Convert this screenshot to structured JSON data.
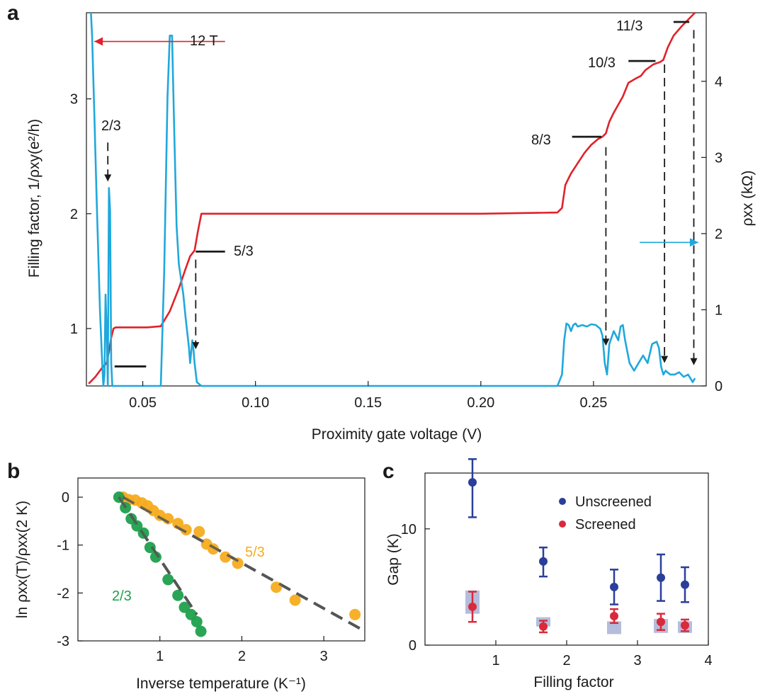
{
  "colors": {
    "red": "#e0222a",
    "cyan": "#1fa8dc",
    "black": "#1a1a1a",
    "orange": "#f5ac1e",
    "green": "#1fa04d",
    "blue": "#2a3f9a",
    "screened_red": "#d92a3b",
    "box_fill": "#a8b2d6",
    "dash_grey": "#555555"
  },
  "panels": {
    "a": "a",
    "b": "b",
    "c": "c"
  },
  "chart_data": [
    {
      "panel": "a",
      "type": "line",
      "xlabel": "Proximity gate voltage (V)",
      "ylabel_left": "Filling factor, 1/ρxy(e²/h)",
      "ylabel_right": "ρxx (kΩ)",
      "xlim": [
        0.025,
        0.3
      ],
      "ylim_left": [
        0.5,
        3.75
      ],
      "ylim_right": [
        0,
        4.9
      ],
      "x_ticks": [
        0.05,
        0.1,
        0.15,
        0.2,
        0.25
      ],
      "x_tick_labels": [
        "0.05",
        "0.10",
        "0.15",
        "0.20",
        "0.25"
      ],
      "y_left_ticks": [
        1,
        2,
        3
      ],
      "y_left_tick_labels": [
        "1",
        "2",
        "3"
      ],
      "y_right_ticks": [
        0,
        1,
        2,
        3,
        4
      ],
      "y_right_tick_labels": [
        "0",
        "1",
        "2",
        "3",
        "4"
      ],
      "annotations": {
        "field": "12 T",
        "f_2_3": "2/3",
        "f_5_3": "5/3",
        "f_8_3": "8/3",
        "f_10_3": "10/3",
        "f_11_3": "11/3"
      },
      "plateau_marks": [
        {
          "x": [
            0.0375,
            0.0515
          ],
          "y": 0.67
        },
        {
          "x": [
            0.0735,
            0.0865
          ],
          "y": 1.67
        },
        {
          "x": [
            0.2405,
            0.2535
          ],
          "y": 2.67
        },
        {
          "x": [
            0.2655,
            0.2775
          ],
          "y": 3.33
        },
        {
          "x": [
            0.2855,
            0.2925
          ],
          "y": 3.67
        }
      ],
      "series": [
        {
          "axis": "left",
          "color": "red",
          "x": [
            0.026,
            0.029,
            0.032,
            0.034,
            0.035,
            0.036,
            0.037,
            0.038,
            0.045,
            0.052,
            0.058,
            0.062,
            0.066,
            0.069,
            0.071,
            0.073,
            0.0745,
            0.076,
            0.09,
            0.15,
            0.2,
            0.234,
            0.236,
            0.2375,
            0.24,
            0.243,
            0.246,
            0.249,
            0.252,
            0.254,
            0.2555,
            0.257,
            0.259,
            0.261,
            0.263,
            0.2655,
            0.269,
            0.271,
            0.273,
            0.2765,
            0.2795,
            0.281,
            0.283,
            0.2855,
            0.289,
            0.2925,
            0.295
          ],
          "y": [
            0.52,
            0.58,
            0.66,
            0.7,
            0.8,
            0.92,
            1.0,
            1.01,
            1.01,
            1.01,
            1.02,
            1.15,
            1.35,
            1.52,
            1.63,
            1.68,
            1.85,
            2.0,
            2.0,
            2.0,
            2.0,
            2.01,
            2.05,
            2.25,
            2.35,
            2.44,
            2.53,
            2.6,
            2.65,
            2.67,
            2.7,
            2.8,
            2.88,
            2.95,
            3.02,
            3.14,
            3.18,
            3.2,
            3.25,
            3.3,
            3.32,
            3.34,
            3.45,
            3.55,
            3.63,
            3.7,
            3.75
          ]
        },
        {
          "axis": "right",
          "color": "cyan",
          "x": [
            0.027,
            0.0275,
            0.0285,
            0.0295,
            0.031,
            0.032,
            0.0325,
            0.033,
            0.0335,
            0.034,
            0.0345,
            0.035,
            0.0355,
            0.036,
            0.0365,
            0.037,
            0.04,
            0.05,
            0.058,
            0.0595,
            0.061,
            0.062,
            0.063,
            0.064,
            0.065,
            0.066,
            0.068,
            0.069,
            0.0705,
            0.071,
            0.072,
            0.0725,
            0.073,
            0.074,
            0.076,
            0.08,
            0.15,
            0.2,
            0.234,
            0.236,
            0.237,
            0.238,
            0.239,
            0.24,
            0.241,
            0.242,
            0.243,
            0.245,
            0.247,
            0.249,
            0.251,
            0.253,
            0.254,
            0.255,
            0.256,
            0.257,
            0.259,
            0.261,
            0.262,
            0.263,
            0.264,
            0.266,
            0.268,
            0.27,
            0.272,
            0.274,
            0.276,
            0.278,
            0.279,
            0.28,
            0.281,
            0.282,
            0.284,
            0.286,
            0.288,
            0.29,
            0.292,
            0.293,
            0.294,
            0.295
          ],
          "y": [
            4.9,
            4.6,
            3.6,
            2.5,
            1.0,
            0.3,
            0.0,
            0.15,
            1.2,
            0.7,
            0.0,
            2.6,
            2.3,
            0.3,
            0.0,
            0.0,
            0.0,
            0.0,
            0.0,
            1.5,
            3.8,
            4.6,
            4.6,
            3.3,
            2.1,
            1.6,
            1.2,
            0.9,
            0.5,
            0.3,
            0.6,
            0.48,
            0.3,
            0.05,
            0.0,
            0.0,
            0.0,
            0.0,
            0.0,
            0.15,
            0.6,
            0.82,
            0.8,
            0.72,
            0.8,
            0.82,
            0.78,
            0.8,
            0.78,
            0.81,
            0.8,
            0.75,
            0.66,
            0.3,
            0.15,
            0.55,
            0.72,
            0.6,
            0.78,
            0.8,
            0.6,
            0.3,
            0.2,
            0.3,
            0.4,
            0.3,
            0.55,
            0.58,
            0.5,
            0.25,
            0.15,
            0.2,
            0.15,
            0.15,
            0.18,
            0.12,
            0.15,
            0.1,
            0.05,
            0.1
          ]
        }
      ],
      "dashed_markers": [
        {
          "x": 0.0345,
          "from_left_y": 2.62,
          "to_left_y": 2.28,
          "label": "f_2_3"
        },
        {
          "x": 0.0735,
          "from_left_y": 1.6,
          "to_left_y": 0.82,
          "label": "f_5_3"
        },
        {
          "x": 0.2555,
          "from_left_y": 2.58,
          "to_left_y": 0.85,
          "label": "f_8_3"
        },
        {
          "x": 0.2815,
          "from_left_y": 3.3,
          "to_left_y": 0.7,
          "label": "f_10_3"
        },
        {
          "x": 0.2945,
          "from_left_y": 3.6,
          "to_left_y": 0.68,
          "label": "f_11_3"
        }
      ],
      "axis_arrows": [
        {
          "color": "red",
          "direction": "left",
          "x": [
            0.0285,
            0.0865
          ],
          "y_left": 3.5
        },
        {
          "color": "cyan",
          "direction": "right",
          "x": [
            0.2705,
            0.2965
          ],
          "y_left": 1.75
        }
      ]
    },
    {
      "panel": "b",
      "type": "scatter",
      "xlabel": "Inverse temperature (K⁻¹)",
      "ylabel": "ln ρxx(T)/ρxx(2 K)",
      "xlim": [
        0.0,
        3.5
      ],
      "ylim": [
        -3.0,
        0.4
      ],
      "x_ticks": [
        1,
        2,
        3
      ],
      "x_tick_labels": [
        "1",
        "2",
        "3"
      ],
      "y_ticks": [
        0,
        -1,
        -2,
        -3
      ],
      "y_tick_labels": [
        "0",
        "-1",
        "-2",
        "-3"
      ],
      "series": [
        {
          "name": "5/3",
          "color": "orange",
          "x": [
            0.55,
            0.62,
            0.7,
            0.78,
            0.85,
            0.92,
            1.0,
            1.1,
            1.22,
            1.32,
            1.48,
            1.57,
            1.65,
            1.8,
            1.95,
            2.42,
            2.65,
            3.38
          ],
          "y": [
            0.0,
            -0.05,
            -0.06,
            -0.12,
            -0.18,
            -0.28,
            -0.38,
            -0.45,
            -0.55,
            -0.68,
            -0.72,
            -0.98,
            -1.08,
            -1.25,
            -1.38,
            -1.88,
            -2.15,
            -2.45
          ]
        },
        {
          "name": "2/3",
          "color": "green",
          "x": [
            0.5,
            0.58,
            0.65,
            0.72,
            0.8,
            0.88,
            0.95,
            1.1,
            1.22,
            1.3,
            1.38,
            1.45,
            1.5
          ],
          "y": [
            0.0,
            -0.22,
            -0.45,
            -0.6,
            -0.75,
            -1.05,
            -1.25,
            -1.72,
            -2.05,
            -2.3,
            -2.45,
            -2.6,
            -2.8
          ]
        }
      ],
      "fits": [
        {
          "color": "dash_grey",
          "x": [
            0.55,
            3.45
          ],
          "y": [
            0.0,
            -2.75
          ]
        },
        {
          "color": "dash_grey",
          "x": [
            0.5,
            1.45
          ],
          "y": [
            0.0,
            -2.45
          ]
        }
      ]
    },
    {
      "panel": "c",
      "type": "scatter",
      "xlabel": "Filling factor",
      "ylabel": "Gap (K)",
      "xlim": [
        0.0,
        4.0
      ],
      "ylim": [
        0.0,
        14.8
      ],
      "x_ticks": [
        1,
        2,
        3,
        4
      ],
      "x_tick_labels": [
        "1",
        "2",
        "3",
        "4"
      ],
      "y_ticks": [
        0,
        10
      ],
      "y_tick_labels": [
        "0",
        "10"
      ],
      "legend_position": "top-right",
      "series": [
        {
          "name": "Unscreened",
          "color": "blue",
          "x": [
            0.67,
            1.67,
            2.67,
            3.33,
            3.67
          ],
          "y": [
            14.0,
            7.2,
            5.0,
            5.8,
            5.2
          ],
          "err_low": [
            3.0,
            1.3,
            1.5,
            2.0,
            1.5
          ],
          "err_high": [
            2.0,
            1.2,
            1.5,
            2.0,
            1.5
          ]
        },
        {
          "name": "Screened",
          "color": "screened_red",
          "x": [
            0.67,
            1.67,
            2.67,
            3.33,
            3.67
          ],
          "y": [
            3.3,
            1.6,
            2.5,
            2.0,
            1.7
          ],
          "err_low": [
            1.3,
            0.5,
            0.6,
            0.7,
            0.5
          ],
          "err_high": [
            1.3,
            0.5,
            0.6,
            0.7,
            0.5
          ],
          "bands": [
            {
              "x_half": 0.1,
              "y_low": 2.7,
              "y_high": 4.7
            },
            {
              "x_half": 0.1,
              "y_low": 1.6,
              "y_high": 2.4
            },
            {
              "x_half": 0.1,
              "y_low": 0.95,
              "y_high": 2.05
            },
            {
              "x_half": 0.1,
              "y_low": 1.05,
              "y_high": 2.25
            },
            {
              "x_half": 0.1,
              "y_low": 1.05,
              "y_high": 2.05
            }
          ]
        }
      ]
    }
  ]
}
